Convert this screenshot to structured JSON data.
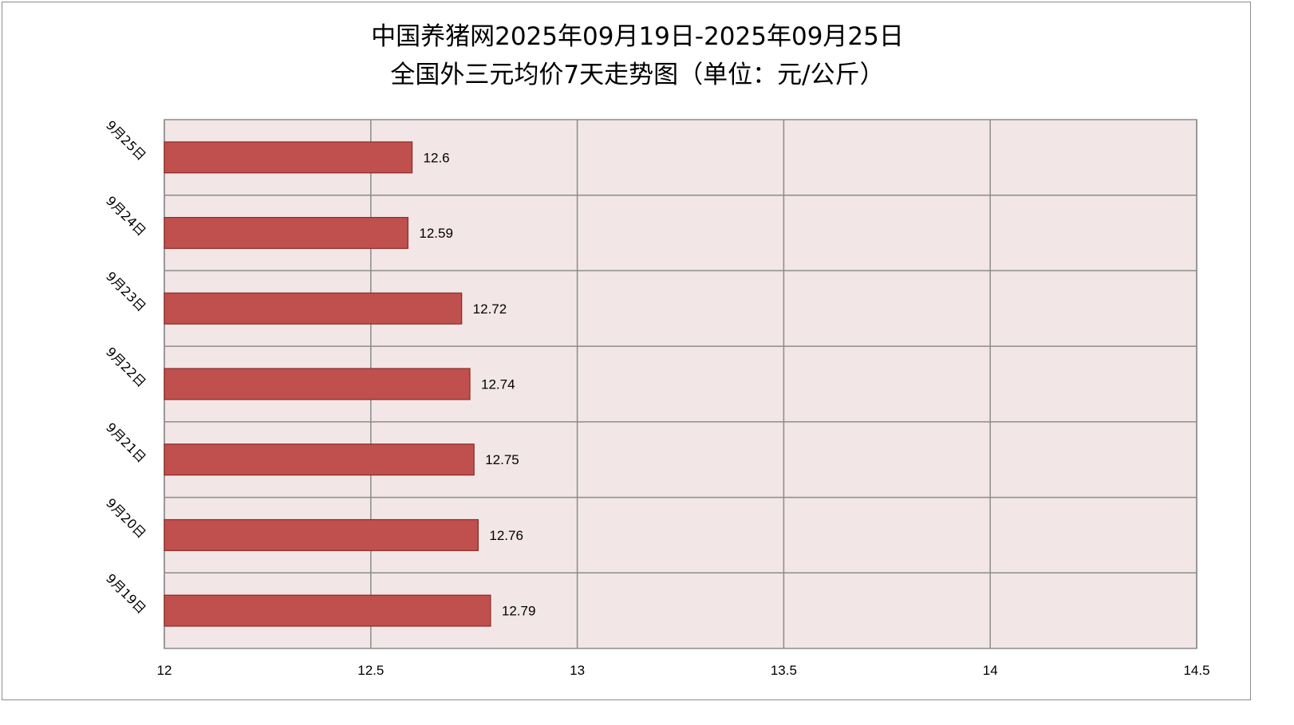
{
  "chart_data": {
    "type": "bar",
    "orientation": "horizontal",
    "title_line1": "中国养猪网2025年09月19日-2025年09月25日",
    "title_line2": "全国外三元均价7天走势图（单位：元/公斤）",
    "categories": [
      "9月25日",
      "9月24日",
      "9月23日",
      "9月22日",
      "9月21日",
      "9月20日",
      "9月19日"
    ],
    "values": [
      12.6,
      12.59,
      12.72,
      12.74,
      12.75,
      12.76,
      12.79
    ],
    "value_labels": [
      "12.6",
      "12.59",
      "12.72",
      "12.74",
      "12.75",
      "12.76",
      "12.79"
    ],
    "xlim": [
      12,
      14.5
    ],
    "x_ticks": [
      12,
      12.5,
      13,
      13.5,
      14,
      14.5
    ],
    "x_tick_labels": [
      "12",
      "12.5",
      "13",
      "13.5",
      "14",
      "14.5"
    ],
    "grid": true,
    "legend": "none",
    "colors": {
      "bar_fill": "#c0504d",
      "bar_stroke": "#8b2b28",
      "plot_background": "#f2e6e6",
      "grid": "#8c8c8c"
    }
  }
}
